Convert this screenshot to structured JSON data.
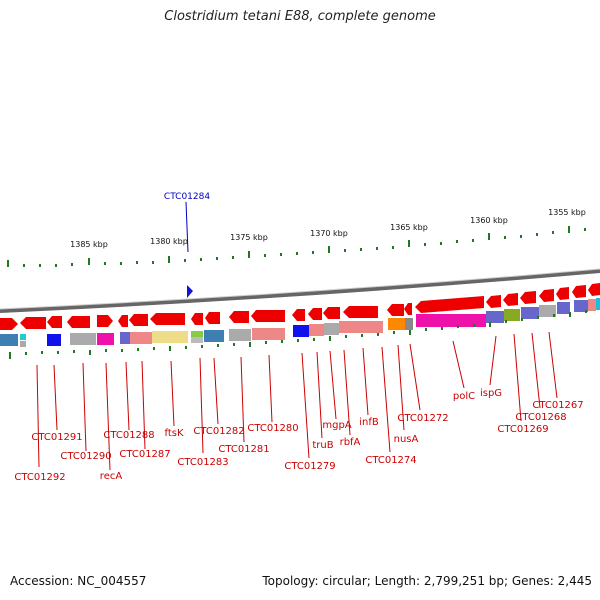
{
  "title": "Clostridium tetani E88, complete genome",
  "footer": {
    "accession": "Accession: NC_004557",
    "topology": "Topology: circular; Length: 2,799,251 bp; Genes: 2,445"
  },
  "highlight_label": "CTC01284",
  "colors": {
    "gene_label": "#cc0000",
    "highlight": "#0000bb",
    "gene_arrow": "#ee0000",
    "tick": "#227722",
    "backbone": "#777777"
  },
  "scale_labels": [
    "1385 kbp",
    "1380 kbp",
    "1375 kbp",
    "1370 kbp",
    "1365 kbp",
    "1360 kbp",
    "1355 kbp"
  ],
  "gene_labels": [
    "CTC01292",
    "CTC01291",
    "CTC01290",
    "recA",
    "CTC01288",
    "CTC01287",
    "ftsK",
    "CTC01283",
    "CTC01282",
    "CTC01281",
    "CTC01280",
    "CTC01279",
    "truB",
    "mgpA",
    "rbfA",
    "infB",
    "CTC01274",
    "nusA",
    "CTC01272",
    "polC",
    "ispG",
    "CTC01269",
    "CTC01268",
    "CTC01267"
  ]
}
